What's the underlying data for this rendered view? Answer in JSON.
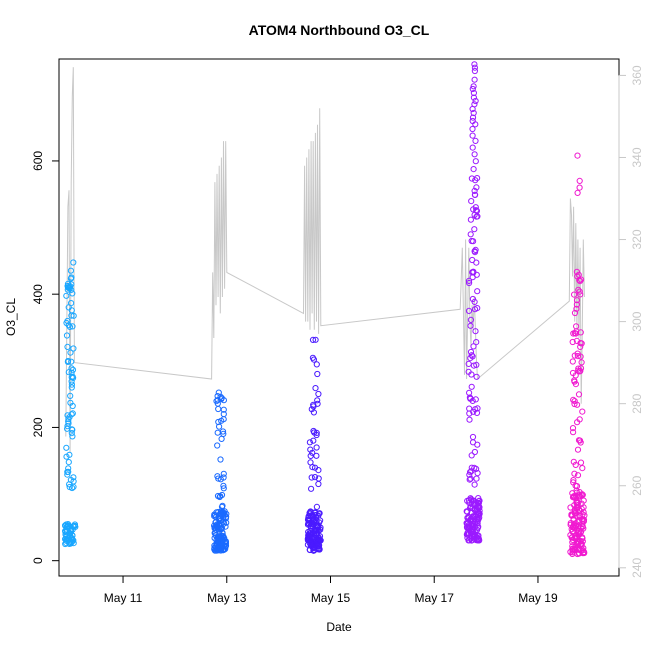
{
  "chart_data": {
    "type": "scatter",
    "title": "ATOM4 Northbound O3_CL",
    "xlabel": "Date",
    "ylabel": "O3_CL",
    "x_axis": {
      "type": "date",
      "range": [
        "2016-05-09T18:22",
        "2016-05-20T13:30"
      ],
      "ticks": [
        "May 11",
        "May 13",
        "May 15",
        "May 17",
        "May 19"
      ],
      "tick_values": [
        "2016-05-11",
        "2016-05-13",
        "2016-05-15",
        "2016-05-17",
        "2016-05-19"
      ]
    },
    "y_left": {
      "range": [
        -23,
        753
      ],
      "ticks": [
        0,
        200,
        400,
        600
      ]
    },
    "y_right": {
      "range": [
        238,
        364
      ],
      "ticks": [
        240,
        260,
        280,
        300,
        320,
        340,
        360
      ],
      "color": "#c8c8c8"
    },
    "scatter_clusters": [
      {
        "start": "2016-05-09T21:00",
        "end": "2016-05-10T02:00",
        "color": "#1aa7ff",
        "low": [
          25,
          55
        ],
        "high": [
          100,
          450
        ],
        "n_low": 55,
        "n_high": 75,
        "spikes": []
      },
      {
        "start": "2016-05-12T18:00",
        "end": "2016-05-12T23:50",
        "color": "#1a6aff",
        "low": [
          15,
          75
        ],
        "high": [
          80,
          255
        ],
        "n_low": 130,
        "n_high": 35,
        "spikes": []
      },
      {
        "start": "2016-05-14T13:30",
        "end": "2016-05-14T19:30",
        "color": "#4a1aff",
        "low": [
          15,
          75
        ],
        "high": [
          80,
          335
        ],
        "n_low": 130,
        "n_high": 35,
        "spikes": []
      },
      {
        "start": "2016-05-17T15:00",
        "end": "2016-05-17T21:00",
        "color": "#9b1aff",
        "low": [
          30,
          95
        ],
        "high": [
          100,
          600
        ],
        "n_low": 120,
        "n_high": 85,
        "spikes": [
          745,
          740,
          735,
          722,
          712,
          708,
          702,
          695,
          690,
          685,
          678,
          672,
          665,
          660,
          655,
          648,
          638,
          630,
          620,
          610
        ]
      },
      {
        "start": "2016-05-19T15:00",
        "end": "2016-05-19T21:30",
        "color": "#f01ad0",
        "low": [
          10,
          105
        ],
        "high": [
          110,
          440
        ],
        "n_low": 130,
        "n_high": 65,
        "spikes": [
          608,
          570,
          560,
          552
        ]
      }
    ],
    "gray_series": {
      "name": "",
      "axis": "right",
      "color": "#c8c8c8",
      "points": [
        [
          "2016-05-09T21:30",
          272
        ],
        [
          "2016-05-09T22:30",
          328
        ],
        [
          "2016-05-09T23:00",
          332
        ],
        [
          "2016-05-09T23:30",
          268
        ],
        [
          "2016-05-10T00:00",
          334
        ],
        [
          "2016-05-10T00:30",
          355
        ],
        [
          "2016-05-10T01:00",
          362
        ],
        [
          "2016-05-10T01:30",
          290
        ],
        [
          "2016-05-12T17:00",
          286
        ],
        [
          "2016-05-12T17:30",
          312
        ],
        [
          "2016-05-12T18:00",
          296
        ],
        [
          "2016-05-12T18:30",
          334
        ],
        [
          "2016-05-12T19:00",
          304
        ],
        [
          "2016-05-12T19:30",
          336
        ],
        [
          "2016-05-12T20:00",
          306
        ],
        [
          "2016-05-12T20:30",
          338
        ],
        [
          "2016-05-12T21:00",
          302
        ],
        [
          "2016-05-12T21:30",
          340
        ],
        [
          "2016-05-12T22:00",
          306
        ],
        [
          "2016-05-12T22:30",
          344
        ],
        [
          "2016-05-12T23:00",
          308
        ],
        [
          "2016-05-12T23:30",
          344
        ],
        [
          "2016-05-13T00:00",
          312
        ],
        [
          "2016-05-14T11:30",
          302
        ],
        [
          "2016-05-14T12:00",
          338
        ],
        [
          "2016-05-14T12:30",
          300
        ],
        [
          "2016-05-14T13:00",
          340
        ],
        [
          "2016-05-14T13:30",
          300
        ],
        [
          "2016-05-14T14:00",
          342
        ],
        [
          "2016-05-14T14:30",
          298
        ],
        [
          "2016-05-14T15:00",
          344
        ],
        [
          "2016-05-14T15:30",
          302
        ],
        [
          "2016-05-14T16:00",
          344
        ],
        [
          "2016-05-14T16:30",
          298
        ],
        [
          "2016-05-14T17:00",
          346
        ],
        [
          "2016-05-14T17:30",
          300
        ],
        [
          "2016-05-14T18:00",
          348
        ],
        [
          "2016-05-14T18:30",
          297
        ],
        [
          "2016-05-14T19:00",
          352
        ],
        [
          "2016-05-14T19:30",
          299
        ],
        [
          "2016-05-17T12:00",
          303
        ],
        [
          "2016-05-17T13:00",
          318
        ],
        [
          "2016-05-17T14:00",
          287
        ],
        [
          "2016-05-17T14:30",
          320
        ],
        [
          "2016-05-17T15:00",
          286
        ],
        [
          "2016-05-17T16:00",
          318
        ],
        [
          "2016-05-17T16:30",
          300
        ],
        [
          "2016-05-17T17:00",
          294
        ],
        [
          "2016-05-17T17:30",
          304
        ],
        [
          "2016-05-17T18:00",
          298
        ],
        [
          "2016-05-17T18:30",
          306
        ],
        [
          "2016-05-17T19:00",
          299
        ],
        [
          "2016-05-17T19:30",
          291
        ],
        [
          "2016-05-17T20:00",
          286
        ],
        [
          "2016-05-19T14:30",
          305
        ],
        [
          "2016-05-19T15:00",
          330
        ],
        [
          "2016-05-19T15:30",
          326
        ],
        [
          "2016-05-19T16:00",
          311
        ],
        [
          "2016-05-19T16:30",
          328
        ],
        [
          "2016-05-19T17:00",
          300
        ],
        [
          "2016-05-19T17:30",
          324
        ],
        [
          "2016-05-19T18:00",
          298
        ],
        [
          "2016-05-19T18:30",
          320
        ],
        [
          "2016-05-19T19:00",
          296
        ],
        [
          "2016-05-19T19:30",
          318
        ],
        [
          "2016-05-19T20:00",
          280
        ],
        [
          "2016-05-19T20:30",
          298
        ],
        [
          "2016-05-19T21:00",
          320
        ],
        [
          "2016-05-19T21:30",
          306
        ]
      ]
    }
  }
}
